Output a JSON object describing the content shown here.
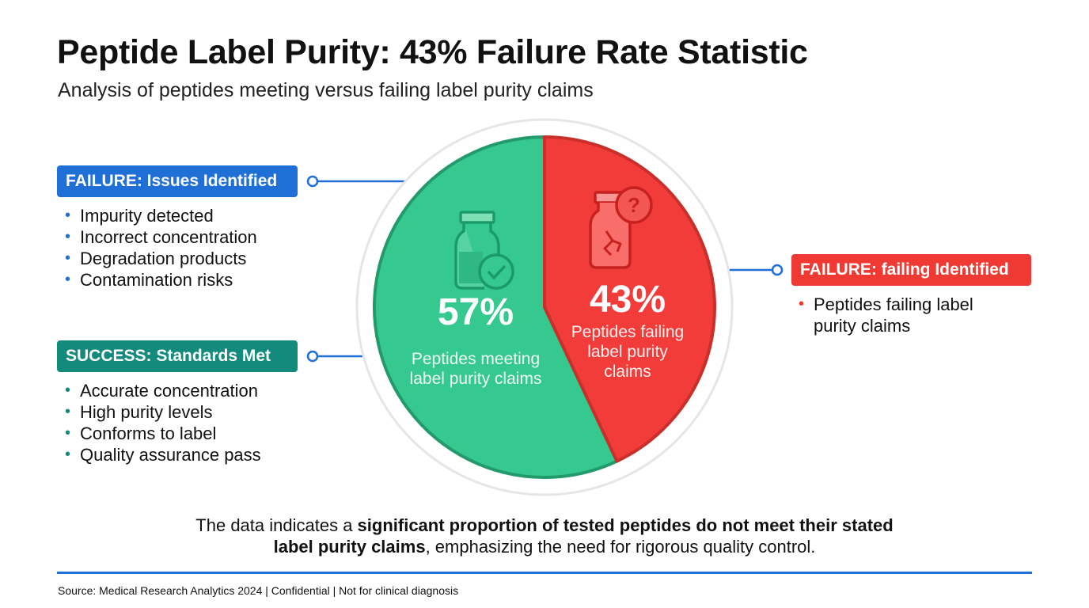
{
  "title": "Peptide Label Purity: 43% Failure Rate Statistic",
  "subtitle": "Analysis of peptides meeting versus failing label purity claims",
  "left_panel": {
    "failure_tag": "FAILURE: Issues Identified",
    "failure_items": [
      "Impurity detected",
      "Incorrect concentration",
      "Degradation products",
      "Contamination risks"
    ],
    "success_tag": "SUCCESS: Standards Met",
    "success_items": [
      "Accurate concentration",
      "High purity levels",
      "Conforms to label",
      "Quality assurance pass"
    ]
  },
  "right_panel": {
    "failure_tag": "FAILURE: failing Identified",
    "items": [
      "Peptides failing label purity claims"
    ]
  },
  "chart_data": {
    "type": "pie",
    "title": "Peptide Label Purity: 43% Failure Rate Statistic",
    "slices": [
      {
        "label": "Peptides meeting label purity claims",
        "label_lines": [
          "Peptides meeting",
          "label purity claims"
        ],
        "value": 57,
        "value_label": "57%",
        "color": "#36c98f",
        "edge": "#229a6c",
        "icon": "vial-check-icon"
      },
      {
        "label": "Peptides failing label purity claims",
        "label_lines": [
          "Peptides failing",
          "label purity",
          "claims"
        ],
        "value": 43,
        "value_label": "43%",
        "color": "#f13c3a",
        "edge": "#c9302b",
        "icon": "cracked-vial-question-icon"
      }
    ]
  },
  "conclusion": {
    "part1": "The data indicates a ",
    "bold1": "significant proportion of tested peptides do not meet their stated",
    "bold2": "label purity claims",
    "part2": ", emphasizing the need for rigorous quality control."
  },
  "footer": {
    "source": "Source: Medical Research Analytics 2024 | Confidential | Not for clinical diagnosis"
  },
  "colors": {
    "blue": "#1f6fd6",
    "teal": "#138a7c",
    "red": "#ef3a33"
  }
}
